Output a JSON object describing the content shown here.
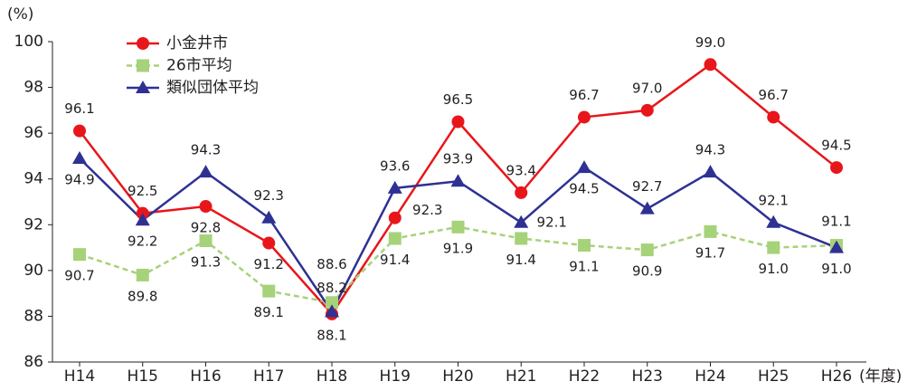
{
  "chart_data": {
    "type": "line",
    "y_unit": "(%)",
    "x_unit": "(年度)",
    "categories": [
      "H14",
      "H15",
      "H16",
      "H17",
      "H18",
      "H19",
      "H20",
      "H21",
      "H22",
      "H23",
      "H24",
      "H25",
      "H26"
    ],
    "ylim": [
      86,
      100
    ],
    "yticks": [
      86,
      88,
      90,
      92,
      94,
      96,
      98,
      100
    ],
    "legend": "upper left",
    "series": [
      {
        "name": "小金井市",
        "color": "#e8161b",
        "marker": "circle",
        "values": [
          96.1,
          92.5,
          92.8,
          91.2,
          88.1,
          92.3,
          96.5,
          93.4,
          96.7,
          97.0,
          99.0,
          96.7,
          94.5
        ],
        "value_labels": [
          "96.1",
          "92.5",
          "92.8",
          "91.2",
          "88.1",
          "92.3",
          "96.5",
          "93.4",
          "96.7",
          "97.0",
          "99.0",
          "96.7",
          "94.5"
        ]
      },
      {
        "name": "26市平均",
        "color": "#a6d279",
        "marker": "square",
        "dashed": true,
        "values": [
          90.7,
          89.8,
          91.3,
          89.1,
          88.6,
          91.4,
          91.9,
          91.4,
          91.1,
          90.9,
          91.7,
          91.0,
          91.1
        ],
        "value_labels": [
          "90.7",
          "89.8",
          "91.3",
          "89.1",
          "88.6",
          "91.4",
          "91.9",
          "91.4",
          "91.1",
          "90.9",
          "91.7",
          "91.0",
          "91.1"
        ]
      },
      {
        "name": "類似団体平均",
        "color": "#2e3192",
        "marker": "triangle",
        "values": [
          94.9,
          92.2,
          94.3,
          92.3,
          88.2,
          93.6,
          93.9,
          92.1,
          94.5,
          92.7,
          94.3,
          92.1,
          91.0
        ],
        "value_labels": [
          "94.9",
          "92.2",
          "94.3",
          "92.3",
          "88.2",
          "93.6",
          "93.9",
          "92.1",
          "94.5",
          "92.7",
          "94.3",
          "92.1",
          "91.0"
        ]
      }
    ]
  }
}
